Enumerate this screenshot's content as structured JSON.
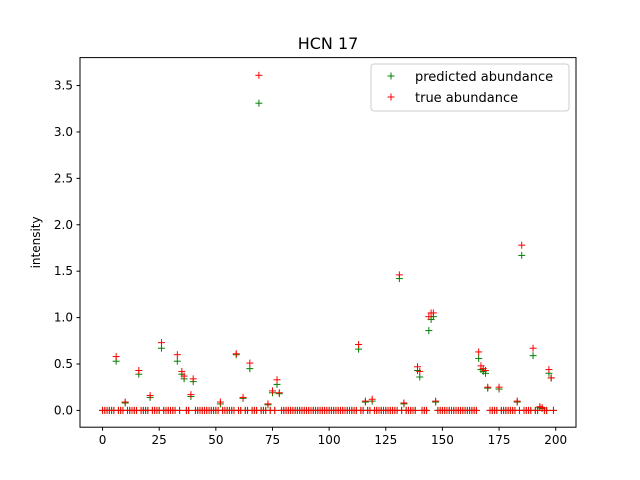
{
  "chart_data": {
    "type": "scatter",
    "title": "HCN 17",
    "xlabel": "",
    "ylabel": "intensity",
    "xlim": [
      -9.95,
      208.95
    ],
    "ylim": [
      -0.181,
      3.801
    ],
    "xticks": [
      0,
      25,
      50,
      75,
      100,
      125,
      150,
      175,
      200
    ],
    "yticks": [
      0.0,
      0.5,
      1.0,
      1.5,
      2.0,
      2.5,
      3.0,
      3.5
    ],
    "ytick_labels": [
      "0.0",
      "0.5",
      "1.0",
      "1.5",
      "2.0",
      "2.5",
      "3.0",
      "3.5"
    ],
    "grid": false,
    "legend_position": "top-right",
    "marker": "+",
    "series": [
      {
        "name": "predicted abundance",
        "color": "#008000",
        "x": [
          6,
          10,
          16,
          21,
          26,
          33,
          35,
          36,
          39,
          40,
          52,
          59,
          62,
          65,
          69,
          73,
          75,
          77,
          78,
          113,
          116,
          119,
          131,
          133,
          139,
          140,
          144,
          145,
          146,
          147,
          166,
          167,
          168,
          169,
          170,
          175,
          183,
          185,
          190,
          193,
          194,
          197,
          198
        ],
        "y": [
          0.53,
          0.08,
          0.39,
          0.14,
          0.67,
          0.53,
          0.39,
          0.34,
          0.15,
          0.31,
          0.07,
          0.6,
          0.13,
          0.45,
          3.31,
          0.06,
          0.19,
          0.28,
          0.18,
          0.66,
          0.09,
          0.1,
          1.42,
          0.07,
          0.43,
          0.36,
          0.86,
          0.98,
          1.01,
          0.09,
          0.56,
          0.44,
          0.42,
          0.4,
          0.24,
          0.23,
          0.09,
          1.67,
          0.59,
          0.03,
          0.02,
          0.4,
          0.35
        ]
      },
      {
        "name": "true abundance",
        "color": "#ff0000",
        "x": [
          6,
          10,
          16,
          21,
          26,
          33,
          35,
          36,
          39,
          40,
          52,
          59,
          62,
          65,
          69,
          73,
          75,
          77,
          78,
          113,
          116,
          119,
          131,
          133,
          139,
          140,
          144,
          145,
          146,
          147,
          166,
          167,
          168,
          169,
          170,
          175,
          183,
          185,
          190,
          193,
          194,
          197,
          198
        ],
        "y": [
          0.58,
          0.09,
          0.43,
          0.16,
          0.73,
          0.6,
          0.42,
          0.37,
          0.17,
          0.34,
          0.09,
          0.61,
          0.14,
          0.51,
          3.61,
          0.07,
          0.21,
          0.33,
          0.19,
          0.71,
          0.1,
          0.12,
          1.46,
          0.08,
          0.47,
          0.42,
          1.01,
          1.05,
          1.05,
          0.1,
          0.63,
          0.48,
          0.45,
          0.43,
          0.25,
          0.25,
          0.1,
          1.78,
          0.67,
          0.04,
          0.03,
          0.44,
          0.35
        ]
      }
    ],
    "baseline": {
      "x_start": 0,
      "x_end": 199,
      "y": 0.0
    }
  }
}
